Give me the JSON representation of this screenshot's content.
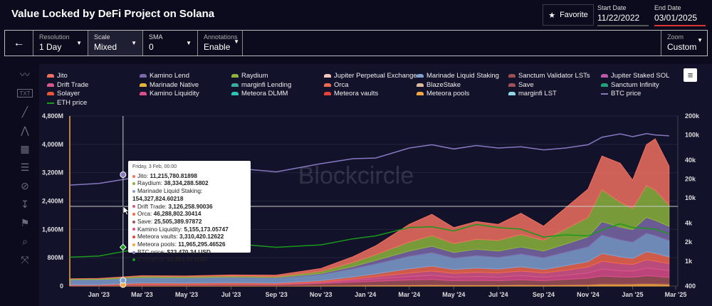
{
  "header": {
    "title": "Value Locked by DeFi Project on Solana",
    "favorite_label": "Favorite",
    "start_date_label": "Start Date",
    "start_date": "11/22/2022",
    "end_date_label": "End Date",
    "end_date": "03/01/2025"
  },
  "toolbar": {
    "back_icon": "arrow-left-icon",
    "resolution": {
      "label": "Resolution",
      "value": "1 Day"
    },
    "scale": {
      "label": "Scale",
      "value": "Mixed"
    },
    "sma": {
      "label": "SMA",
      "value": "0"
    },
    "annotations": {
      "label": "Annotations",
      "value": "Enable"
    },
    "zoom": {
      "label": "Zoom",
      "value": "Custom"
    }
  },
  "sidebar_icons": [
    "trend-lines-icon",
    "text-note-icon",
    "line-tool-icon",
    "fork-tool-icon",
    "grid-tool-icon",
    "table-tool-icon",
    "hide-icon",
    "measure-icon",
    "flag-icon",
    "zoom-search-icon",
    "fullscreen-icon"
  ],
  "watermark": "Blockcircle",
  "chart_data": {
    "type": "area",
    "title": "Value Locked by DeFi Project on Solana",
    "x": [
      "2022-11-22",
      "2023-01-01",
      "2023-03-01",
      "2023-05-01",
      "2023-07-01",
      "2023-09-01",
      "2023-11-01",
      "2023-12-15",
      "2024-01-15",
      "2024-03-01",
      "2024-04-01",
      "2024-05-01",
      "2024-06-01",
      "2024-07-01",
      "2024-08-01",
      "2024-09-01",
      "2024-10-01",
      "2024-11-01",
      "2024-11-20",
      "2024-12-15",
      "2025-01-01",
      "2025-01-20",
      "2025-02-01",
      "2025-02-20"
    ],
    "x_ticks": [
      "Jan '23",
      "Mar '23",
      "May '23",
      "Jul '23",
      "Sep '23",
      "Nov '23",
      "Jan '24",
      "Mar '24",
      "May '24",
      "Jul '24",
      "Sep '24",
      "Nov '24",
      "Jan '25",
      "Mar '25"
    ],
    "x_tick_dates": [
      "2023-01-01",
      "2023-03-01",
      "2023-05-01",
      "2023-07-01",
      "2023-09-01",
      "2023-11-01",
      "2024-01-01",
      "2024-03-01",
      "2024-05-01",
      "2024-07-01",
      "2024-09-01",
      "2024-11-01",
      "2025-01-01",
      "2025-03-01"
    ],
    "y_left": {
      "ticks": [
        "0",
        "800M",
        "1,600M",
        "2,400M",
        "3,200M",
        "4,000M",
        "4,800M"
      ],
      "range": [
        0,
        4800
      ],
      "unit": "M USD",
      "scale": "linear"
    },
    "y_right": {
      "ticks": [
        "400",
        "1k",
        "2k",
        "4k",
        "10k",
        "20k",
        "40k",
        "100k",
        "200k"
      ],
      "tick_values": [
        400,
        1000,
        2000,
        4000,
        10000,
        20000,
        40000,
        100000,
        200000
      ],
      "range": [
        400,
        200000
      ],
      "scale": "log"
    },
    "legend": [
      {
        "name": "Jito",
        "color": "#f0705f"
      },
      {
        "name": "Kamino Lend",
        "color": "#7b68a8"
      },
      {
        "name": "Raydium",
        "color": "#8cb33c"
      },
      {
        "name": "Jupiter Perpetual Exchange",
        "color": "#f5c6c0"
      },
      {
        "name": "Marinade Liquid Staking",
        "color": "#7f9fcf"
      },
      {
        "name": "Sanctum Validator LSTs",
        "color": "#9a5050"
      },
      {
        "name": "Jupiter Staked SOL",
        "color": "#b85aa8"
      },
      {
        "name": "Drift Trade",
        "color": "#d7578a"
      },
      {
        "name": "Marinade Native",
        "color": "#e6b43c"
      },
      {
        "name": "marginfi Lending",
        "color": "#3aa9a0"
      },
      {
        "name": "Orca",
        "color": "#f0684f"
      },
      {
        "name": "BlazeStake",
        "color": "#e0b89a"
      },
      {
        "name": "Save",
        "color": "#a05058"
      },
      {
        "name": "Sanctum Infinity",
        "color": "#22a07a"
      },
      {
        "name": "Solayer",
        "color": "#e8563a"
      },
      {
        "name": "Kamino Liquidity",
        "color": "#d94f8a"
      },
      {
        "name": "Meteora DLMM",
        "color": "#2cc2b4"
      },
      {
        "name": "Meteora vaults",
        "color": "#e8403a"
      },
      {
        "name": "Meteora pools",
        "color": "#f5a742"
      },
      {
        "name": "marginfi LST",
        "color": "#8fd8e8"
      },
      {
        "name": "BTC price",
        "color": "#8878c0"
      },
      {
        "name": "ETH price",
        "color": "#1a9a1a"
      }
    ],
    "series": [
      {
        "name": "Meteora pools",
        "color": "#f5a742",
        "values": [
          5,
          5,
          12,
          12,
          12,
          10,
          15,
          20,
          25,
          30,
          35,
          30,
          30,
          30,
          35,
          30,
          35,
          40,
          60,
          55,
          60,
          70,
          65,
          55
        ]
      },
      {
        "name": "Save",
        "color": "#a05058",
        "values": [
          10,
          12,
          25,
          25,
          30,
          28,
          60,
          90,
          110,
          140,
          150,
          120,
          130,
          120,
          140,
          120,
          150,
          180,
          220,
          200,
          190,
          220,
          210,
          190
        ]
      },
      {
        "name": "Kamino Liquidity",
        "color": "#d94f8a",
        "values": [
          2,
          3,
          5,
          5,
          8,
          8,
          25,
          50,
          70,
          100,
          120,
          100,
          110,
          100,
          120,
          100,
          120,
          150,
          200,
          180,
          170,
          220,
          210,
          190
        ]
      },
      {
        "name": "Drift Trade",
        "color": "#d7578a",
        "values": [
          2,
          2,
          3,
          3,
          5,
          5,
          15,
          40,
          60,
          100,
          120,
          110,
          120,
          120,
          130,
          120,
          140,
          170,
          220,
          200,
          190,
          230,
          220,
          200
        ]
      },
      {
        "name": "Orca",
        "color": "#f0684f",
        "values": [
          15,
          15,
          45,
          40,
          40,
          35,
          40,
          60,
          80,
          120,
          140,
          110,
          120,
          110,
          120,
          100,
          130,
          150,
          220,
          190,
          170,
          230,
          220,
          190
        ]
      },
      {
        "name": "Marinade Liquid Staking",
        "color": "#7f9fcf",
        "values": [
          150,
          150,
          154,
          150,
          150,
          140,
          170,
          230,
          280,
          350,
          380,
          320,
          350,
          330,
          360,
          330,
          380,
          420,
          520,
          480,
          460,
          520,
          500,
          460
        ]
      },
      {
        "name": "Kamino Lend",
        "color": "#7b68a8",
        "values": [
          0,
          0,
          0,
          0,
          10,
          15,
          30,
          60,
          100,
          150,
          180,
          160,
          180,
          180,
          200,
          190,
          230,
          280,
          380,
          360,
          350,
          450,
          430,
          400
        ]
      },
      {
        "name": "Raydium",
        "color": "#8cb33c",
        "values": [
          20,
          25,
          38,
          35,
          30,
          28,
          60,
          120,
          160,
          250,
          300,
          250,
          280,
          300,
          350,
          300,
          420,
          550,
          900,
          700,
          600,
          900,
          850,
          600
        ]
      },
      {
        "name": "Jito",
        "color": "#f0705f",
        "values": [
          0,
          5,
          11,
          15,
          30,
          40,
          80,
          160,
          250,
          500,
          600,
          450,
          500,
          450,
          600,
          400,
          600,
          800,
          950,
          1100,
          800,
          1150,
          1450,
          1100
        ]
      }
    ],
    "lines": [
      {
        "name": "BTC price",
        "color": "#8878c0",
        "axis": "right",
        "values": [
          16000,
          17000,
          22000,
          29000,
          30000,
          26000,
          35000,
          42000,
          43000,
          62000,
          70000,
          60000,
          68000,
          62000,
          65000,
          58000,
          62000,
          70000,
          92000,
          104000,
          94000,
          105000,
          100000,
          97000
        ]
      },
      {
        "name": "ETH price",
        "color": "#1a9a1a",
        "axis": "right",
        "values": [
          1150,
          1200,
          1600,
          1850,
          1900,
          1650,
          1800,
          2250,
          2500,
          3400,
          3500,
          3000,
          3800,
          3400,
          3200,
          2400,
          2600,
          2500,
          3100,
          3900,
          3400,
          3300,
          3200,
          2700
        ]
      }
    ],
    "tooltip": {
      "title": "Friday, 3 Feb, 00:00",
      "rows": [
        {
          "label": "Jito",
          "value": "11,215,780.81898",
          "color": "#f0705f"
        },
        {
          "label": "Raydium",
          "value": "38,334,288.5802",
          "color": "#8cb33c"
        },
        {
          "label": "Marinade Liquid Staking",
          "value": "154,327,824.60218",
          "color": "#7f9fcf"
        },
        {
          "label": "Drift Trade",
          "value": "3,126,258.90036",
          "color": "#d7578a"
        },
        {
          "label": "Orca",
          "value": "46,288,802.30414",
          "color": "#f0684f"
        },
        {
          "label": "Save",
          "value": "25,505,389.97872",
          "color": "#a05058"
        },
        {
          "label": "Kamino Liquidity",
          "value": "5,155,173.05747",
          "color": "#d94f8a"
        },
        {
          "label": "Meteora vaults",
          "value": "3,310,420.12622",
          "color": "#e8403a"
        },
        {
          "label": "Meteora pools",
          "value": "11,965,295.46526",
          "color": "#f5a742"
        },
        {
          "label": "BTC price",
          "value": "$23,470.34 USD",
          "color": "#8878c0"
        },
        {
          "label": "ETH price",
          "value": "$1,651.97 USD",
          "color": "#1a9a1a"
        }
      ]
    },
    "hover_date": "2023-02-03"
  }
}
